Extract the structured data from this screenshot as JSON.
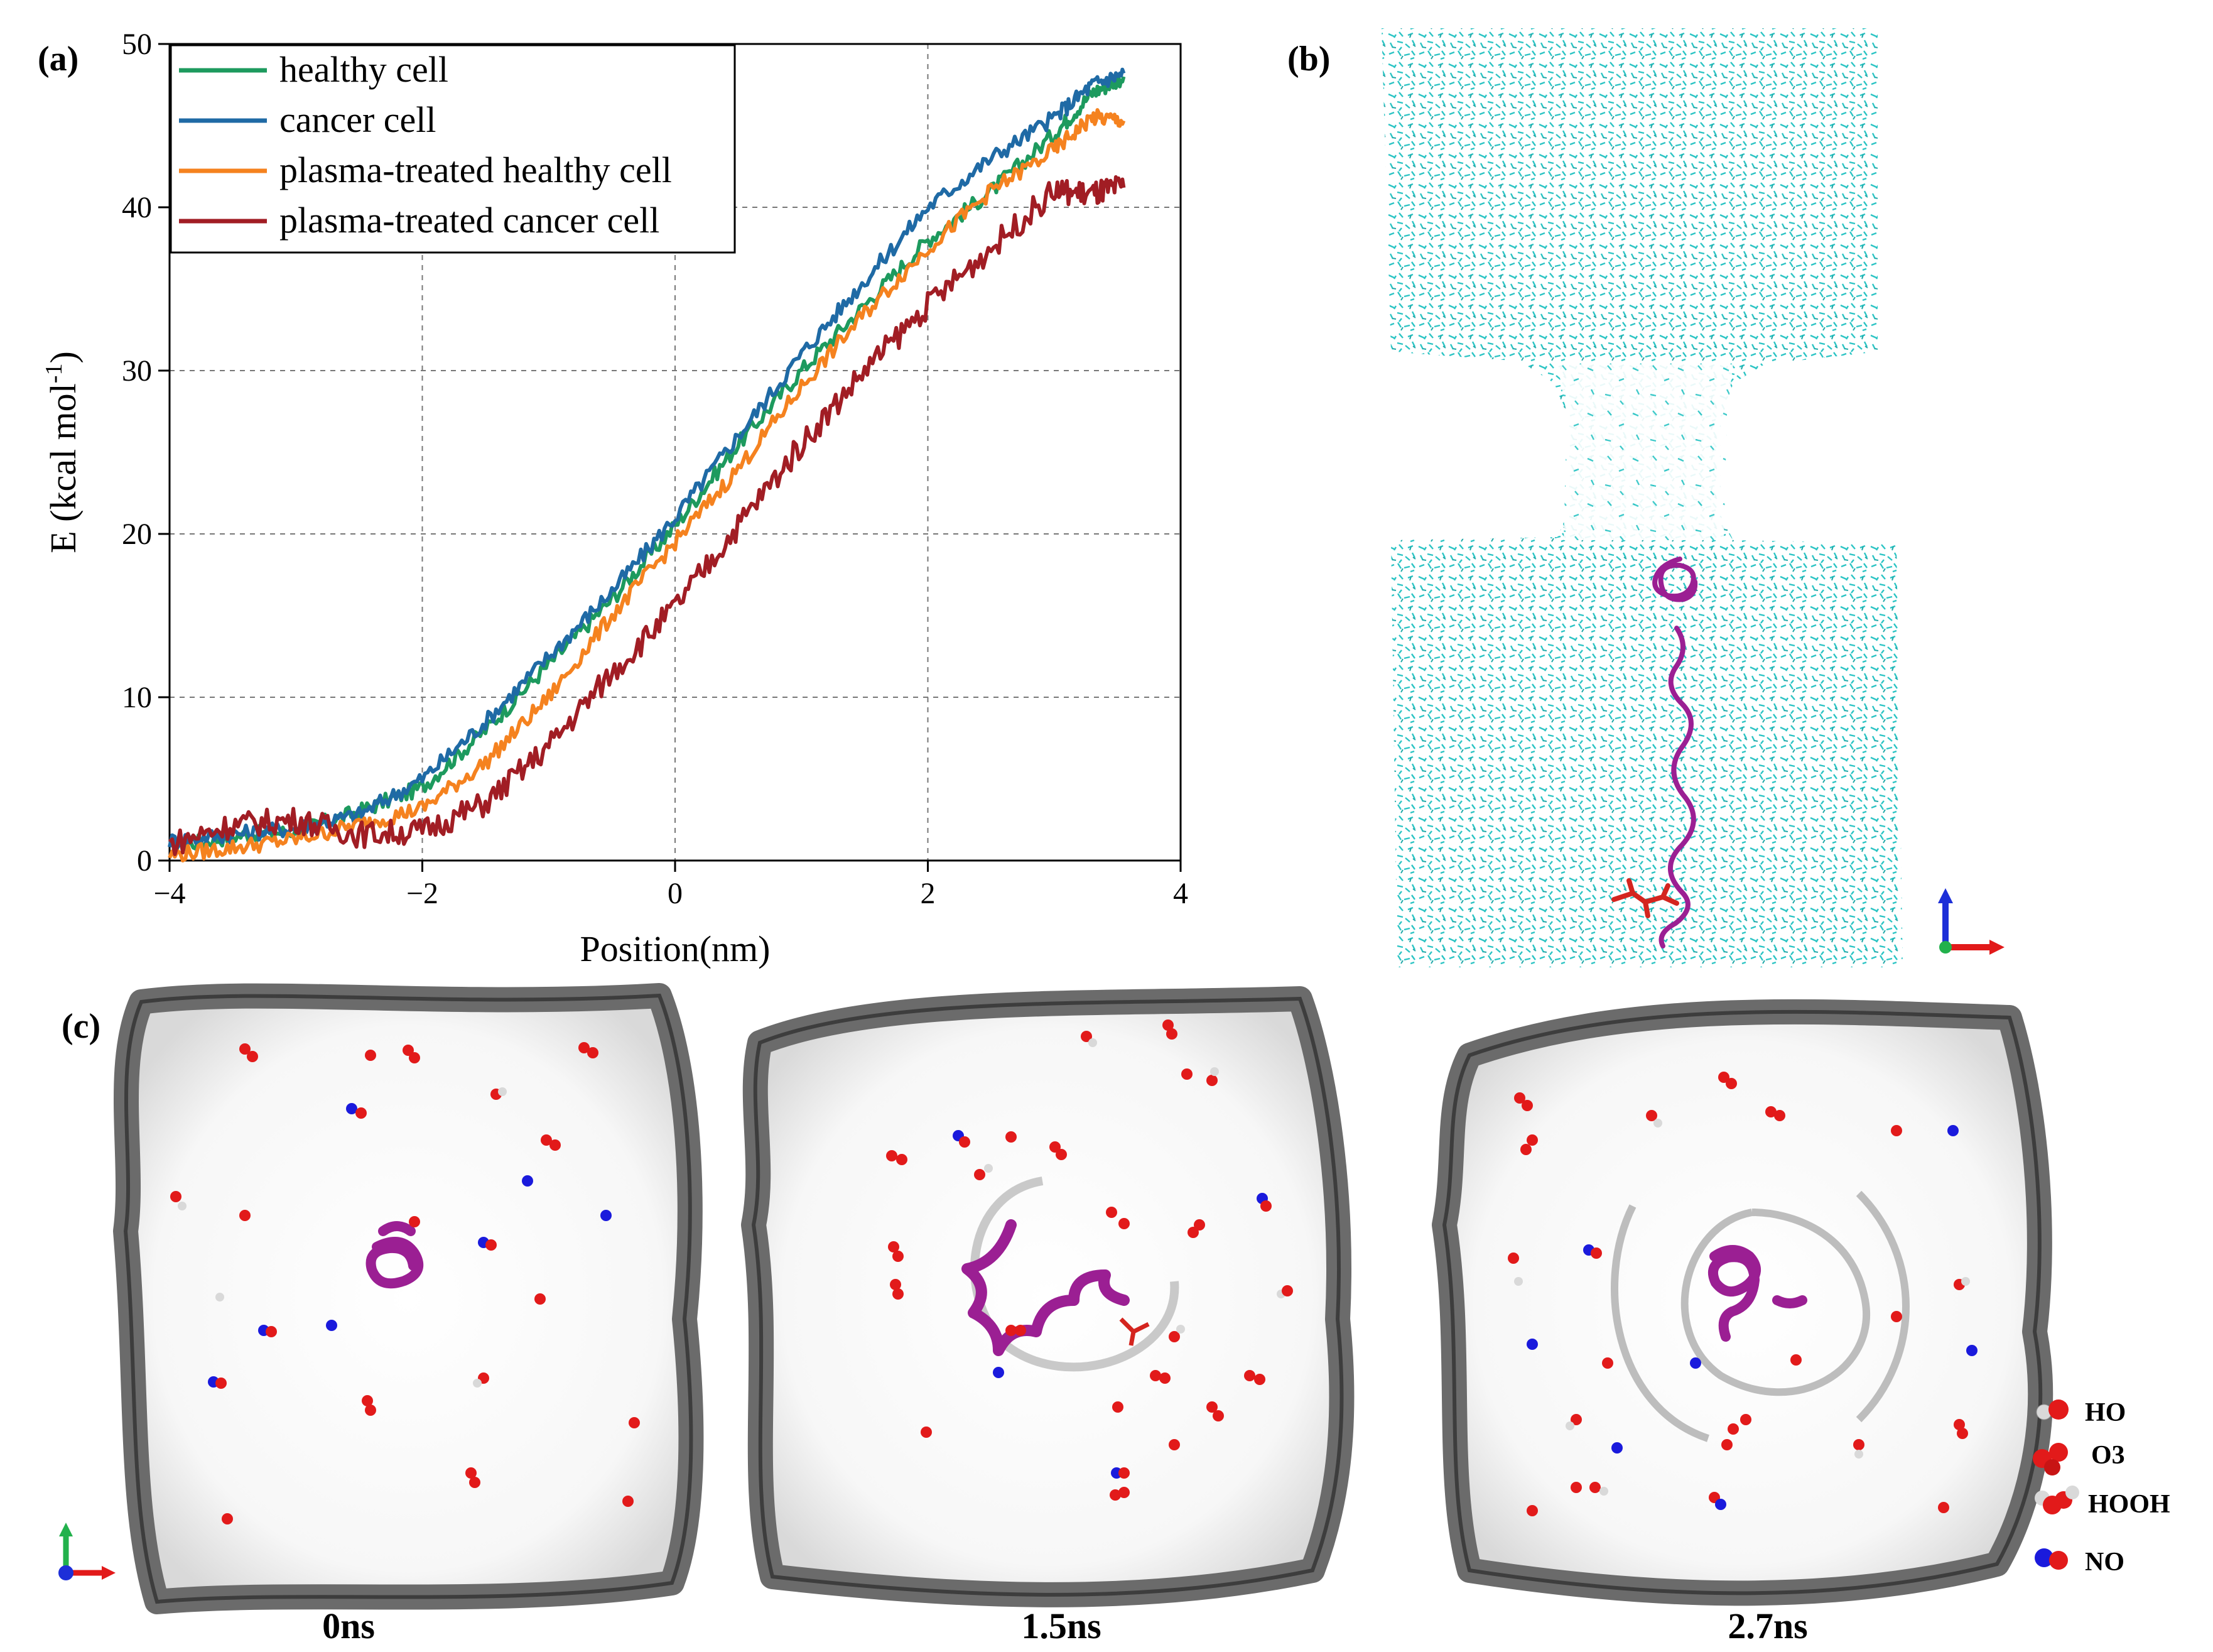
{
  "labels": {
    "a": "(a)",
    "b": "(b)",
    "c": "(c)"
  },
  "chart_data": {
    "type": "line",
    "xlabel": "Position(nm)",
    "ylabel_main": "E (kcal mol",
    "ylabel_sup": "-1",
    "ylabel_end": ")",
    "xlim": [
      -4,
      4
    ],
    "ylim": [
      0,
      50
    ],
    "xticks": [
      -4,
      -2,
      0,
      2,
      4
    ],
    "xtick_labels": [
      "−4",
      "−2",
      "0",
      "2",
      "4"
    ],
    "yticks": [
      0,
      10,
      20,
      30,
      40,
      50
    ],
    "ytick_labels": [
      "0",
      "10",
      "20",
      "30",
      "40",
      "50"
    ],
    "grid": true,
    "legend_position": "top-left",
    "series": [
      {
        "name": "healthy cell",
        "color": "#1d9a5e",
        "x": [
          -4,
          -3.5,
          -3,
          -2.5,
          -2,
          -1.5,
          -1,
          -0.5,
          0,
          0.5,
          1,
          1.5,
          2,
          2.5,
          3,
          3.3,
          3.55
        ],
        "y": [
          0.8,
          1.5,
          1.8,
          3.0,
          4.5,
          8,
          12,
          16,
          20.5,
          25.5,
          30,
          34,
          38,
          41,
          44.5,
          47,
          48
        ]
      },
      {
        "name": "cancer cell",
        "color": "#1f6aa5",
        "x": [
          -4,
          -3.5,
          -3,
          -2.5,
          -2,
          -1.5,
          -1,
          -0.5,
          0,
          0.5,
          1,
          1.5,
          2,
          2.5,
          3,
          3.3,
          3.55
        ],
        "y": [
          1.2,
          1.6,
          2.0,
          2.8,
          5.0,
          8.5,
          12.5,
          16.5,
          21,
          26,
          31,
          35.5,
          40,
          43,
          45.5,
          47.5,
          48.2
        ]
      },
      {
        "name": "plasma-treated healthy cell",
        "color": "#f5821f",
        "x": [
          -4,
          -3.5,
          -3,
          -2.5,
          -2,
          -1.5,
          -1,
          -0.5,
          0,
          0.5,
          1,
          1.5,
          2,
          2.5,
          3,
          3.3,
          3.55
        ],
        "y": [
          0.3,
          0.8,
          1.3,
          2.2,
          3.2,
          6.0,
          10,
          15,
          19.5,
          24,
          29,
          33.5,
          37.5,
          41,
          43.5,
          45.5,
          45.3
        ]
      },
      {
        "name": "plasma-treated cancer cell",
        "color": "#a11d24",
        "x": [
          -4,
          -3.5,
          -3,
          -2.5,
          -2,
          -1.5,
          -1,
          -0.5,
          0,
          0.5,
          1,
          1.5,
          2,
          2.5,
          3,
          3.3,
          3.55
        ],
        "y": [
          1.0,
          2.2,
          2.5,
          1.6,
          1.8,
          3.5,
          7.0,
          11.5,
          15.5,
          20.5,
          25.5,
          30,
          34,
          37.5,
          41,
          40.8,
          41.2
        ]
      }
    ]
  },
  "snapshots": [
    {
      "time": "0ns"
    },
    {
      "time": "1.5ns"
    },
    {
      "time": "2.7ns"
    }
  ],
  "molecule_key": [
    {
      "label": "HO",
      "icon": "ho-molecule-icon"
    },
    {
      "label": "O3",
      "icon": "o3-molecule-icon"
    },
    {
      "label": "HOOH",
      "icon": "hooh-molecule-icon"
    },
    {
      "label": "NO",
      "icon": "no-molecule-icon"
    }
  ],
  "colors": {
    "water": "#2bc4c4",
    "peptide": "#9b1f93",
    "oxygen": "#e21a1a",
    "hydrogen": "#d9d9d9",
    "nitrogen": "#1a1adc",
    "membrane": "#6b6b6b"
  }
}
